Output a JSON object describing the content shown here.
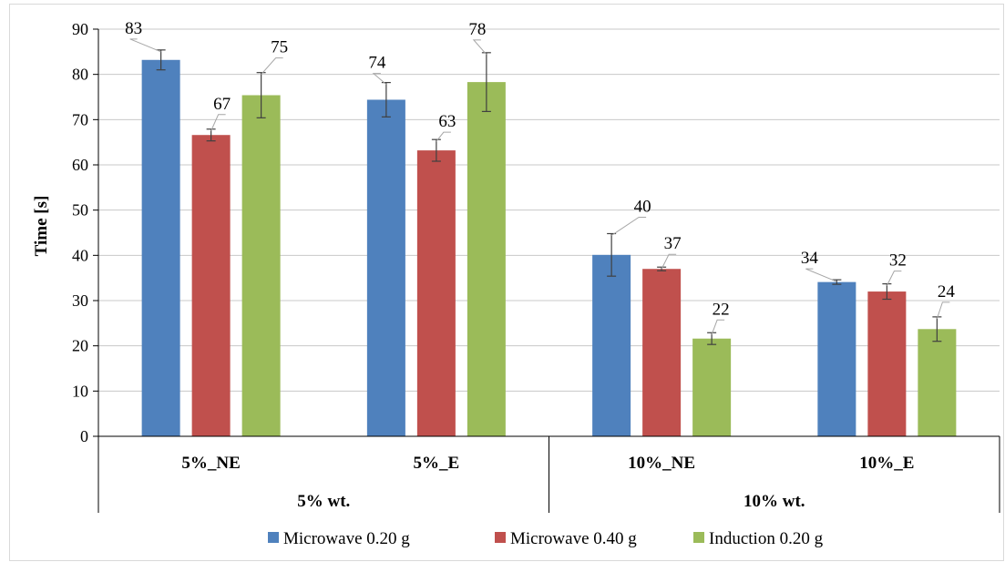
{
  "chart_data": {
    "type": "bar",
    "title": "",
    "ylabel": "Time [s]",
    "ylim": [
      0,
      90
    ],
    "yticks": [
      0,
      10,
      20,
      30,
      40,
      50,
      60,
      70,
      80,
      90
    ],
    "grid": true,
    "legend_position": "bottom",
    "categories": [
      "5%_NE",
      "5%_E",
      "10%_NE",
      "10%_E"
    ],
    "groups": [
      {
        "label": "5% wt.",
        "categories": [
          "5%_NE",
          "5%_E"
        ]
      },
      {
        "label": "10% wt.",
        "categories": [
          "10%_NE",
          "10%_E"
        ]
      }
    ],
    "series": [
      {
        "name": "Microwave 0.20 g",
        "color": "#4f81bd",
        "values": [
          83.2,
          74.4,
          40.1,
          34.1
        ],
        "errors": [
          2.2,
          3.8,
          4.7,
          0.5
        ],
        "labels": [
          "83",
          "74",
          "40",
          "34"
        ]
      },
      {
        "name": "Microwave 0.40 g",
        "color": "#c0504d",
        "values": [
          66.6,
          63.2,
          37.0,
          32.0
        ],
        "errors": [
          1.3,
          2.4,
          0.4,
          1.7
        ],
        "labels": [
          "67",
          "63",
          "37",
          "32"
        ]
      },
      {
        "name": "Induction 0.20 g",
        "color": "#9bbb59",
        "values": [
          75.4,
          78.3,
          21.6,
          23.7
        ],
        "errors": [
          5.0,
          6.5,
          1.3,
          2.7
        ],
        "labels": [
          "75",
          "78",
          "22",
          "24"
        ]
      }
    ]
  }
}
